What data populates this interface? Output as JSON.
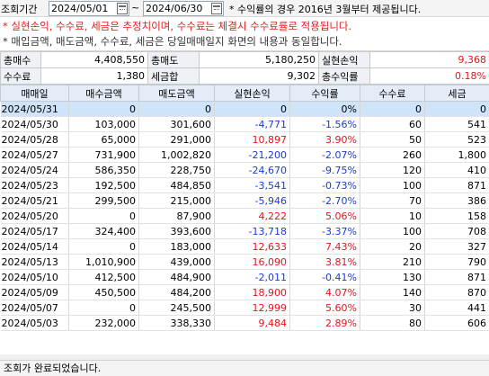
{
  "filter": {
    "period_label": "조회기간",
    "start_date": "2024/05/01",
    "tilde": "~",
    "end_date": "2024/06/30",
    "note": "* 수익률의 경우 2016년 3월부터 제공됩니다."
  },
  "notice": {
    "line1": "* 실현손익, 수수료, 세금은 추정치이며, 수수료는 체결시 수수료률로 적용됩니다.",
    "line2": "* 매입금액, 매도금액, 수수료, 세금은 당일매매일지 화면의 내용과 동일합니다."
  },
  "summary": {
    "buy_qty_label": "총매수",
    "buy_qty": "4,408,550",
    "sell_qty_label": "총매도",
    "sell_qty": "5,180,250",
    "realized_label": "실현손익",
    "realized": "9,368",
    "fee_label": "수수료",
    "fee": "1,380",
    "tax_label": "세금합",
    "tax": "9,302",
    "return_label": "총수익률",
    "return": "0.18%"
  },
  "table": {
    "headers": [
      "매매일",
      "매수금액",
      "매도금액",
      "실현손익",
      "수익률",
      "수수료",
      "세금"
    ],
    "rows": [
      [
        "2024/05/31",
        "0",
        "0",
        "0",
        "0%",
        "0",
        "0"
      ],
      [
        "2024/05/30",
        "103,000",
        "301,600",
        "-4,771",
        "-1.56%",
        "60",
        "541"
      ],
      [
        "2024/05/28",
        "65,000",
        "291,000",
        "10,897",
        "3.90%",
        "50",
        "523"
      ],
      [
        "2024/05/27",
        "731,900",
        "1,002,820",
        "-21,200",
        "-2.07%",
        "260",
        "1,800"
      ],
      [
        "2024/05/24",
        "586,350",
        "228,750",
        "-24,670",
        "-9.75%",
        "120",
        "410"
      ],
      [
        "2024/05/23",
        "192,500",
        "484,850",
        "-3,541",
        "-0.73%",
        "100",
        "871"
      ],
      [
        "2024/05/21",
        "299,500",
        "215,000",
        "-5,946",
        "-2.70%",
        "70",
        "386"
      ],
      [
        "2024/05/20",
        "0",
        "87,900",
        "4,222",
        "5.06%",
        "10",
        "158"
      ],
      [
        "2024/05/17",
        "324,400",
        "393,600",
        "-13,718",
        "-3.37%",
        "100",
        "708"
      ],
      [
        "2024/05/14",
        "0",
        "183,000",
        "12,633",
        "7.43%",
        "20",
        "327"
      ],
      [
        "2024/05/13",
        "1,010,900",
        "439,000",
        "16,090",
        "3.81%",
        "210",
        "790"
      ],
      [
        "2024/05/10",
        "412,500",
        "484,900",
        "-2,011",
        "-0.41%",
        "130",
        "871"
      ],
      [
        "2024/05/09",
        "450,500",
        "484,200",
        "18,900",
        "4.07%",
        "140",
        "870"
      ],
      [
        "2024/05/07",
        "0",
        "245,500",
        "12,999",
        "5.60%",
        "30",
        "441"
      ],
      [
        "2024/05/03",
        "232,000",
        "338,330",
        "9,484",
        "2.89%",
        "80",
        "606"
      ]
    ]
  },
  "status": "조회가 완료되었습니다.",
  "colors": {
    "positive": "#e4141b",
    "negative": "#1a3ad8",
    "notice": "#e02020"
  }
}
